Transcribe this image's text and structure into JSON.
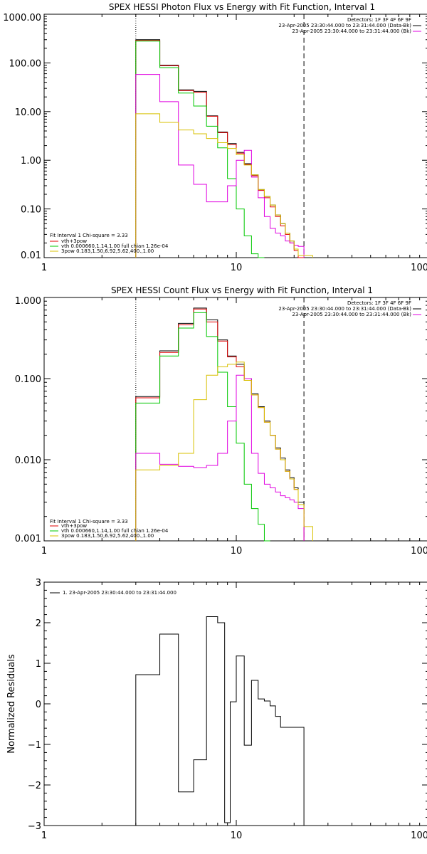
{
  "chart_data": [
    {
      "type": "line",
      "title": "SPEX HESSI Photon Flux vs Energy with Fit Function, Interval 1",
      "xlabel": "",
      "ylabel": "",
      "xscale": "log",
      "yscale": "log",
      "xlim": [
        1,
        100
      ],
      "ylim": [
        0.01,
        1000
      ],
      "xtick_values": [
        1,
        10,
        100
      ],
      "xtick_labels": [
        "1",
        "10",
        "100"
      ],
      "ytick_values": [
        0.01,
        0.1,
        1,
        10,
        100,
        1000
      ],
      "ytick_labels": [
        "0.01",
        "0.10",
        "1.00",
        "10.00",
        "100.00",
        "1000.00"
      ],
      "annotations": {
        "detectors": "Detectors: 1F 3F 4F 6F 9F",
        "interval_lines": [
          {
            "text": "23-Apr-2005 23:30:44.000 to 23:31:44.000 (Data-Bk)",
            "color": "#000000"
          },
          {
            "text": "23-Apr-2005 23:30:44.000 to 23:31:44.000 (Bk)",
            "color": "#e000e0"
          }
        ],
        "fit_info": "Fit Interval 1   Chi-square = 3.33",
        "fit_legend": [
          {
            "text": "vth+3pow",
            "color": "#e00000"
          },
          {
            "text": "vth 0.000660,1.14,1.00  full chian 1.26e-04",
            "color": "#00c800"
          },
          {
            "text": "3pow 0.183,1.50,6.92,5.62,400.,1.00",
            "color": "#d8c000"
          }
        ]
      },
      "vlines": [
        {
          "x": 3.0,
          "style": "dotted"
        },
        {
          "x": 22.5,
          "style": "dashed"
        }
      ],
      "bin_edges": [
        3.0,
        4.0,
        5.0,
        6.0,
        7.0,
        8.0,
        9.0,
        10.0,
        11.0,
        12.0,
        13.0,
        14.0,
        15.0,
        16.0,
        17.0,
        18.0,
        19.0,
        20.0,
        21.0,
        22.5,
        25.0
      ],
      "series": [
        {
          "color": "#000000",
          "values": [
            300,
            90,
            28,
            26,
            8.2,
            3.8,
            2.2,
            1.45,
            0.85,
            0.5,
            0.25,
            0.18,
            0.12,
            0.075,
            0.05,
            0.032,
            0.022,
            0.015,
            0.01,
            null
          ]
        },
        {
          "color": "#e00000",
          "values": [
            290,
            88,
            27,
            25,
            8.0,
            3.7,
            2.1,
            1.4,
            0.82,
            0.48,
            0.24,
            0.17,
            0.11,
            0.07,
            0.045,
            0.03,
            0.02,
            0.014,
            0.009,
            null
          ]
        },
        {
          "color": "#00c800",
          "values": [
            280,
            80,
            24,
            13,
            5.0,
            1.8,
            0.42,
            0.1,
            0.028,
            0.012,
            0.005,
            null,
            null,
            null,
            null,
            null,
            null,
            null,
            null,
            null
          ]
        },
        {
          "color": "#e000e0",
          "values": [
            58,
            16,
            0.8,
            0.32,
            0.14,
            0.14,
            0.3,
            1.0,
            1.6,
            0.45,
            0.17,
            0.07,
            0.04,
            0.032,
            0.028,
            0.022,
            0.02,
            0.018,
            0.017,
            null
          ]
        },
        {
          "color": "#d8c000",
          "values": [
            9.0,
            6.0,
            4.2,
            3.5,
            2.8,
            2.3,
            1.75,
            1.3,
            0.8,
            0.5,
            0.25,
            0.18,
            0.12,
            0.075,
            0.05,
            0.032,
            0.022,
            0.015,
            0.011,
            0.011
          ]
        }
      ]
    },
    {
      "type": "line",
      "title": "SPEX HESSI Count Flux vs Energy with Fit Function, Interval 1",
      "xlabel": "",
      "ylabel": "",
      "xscale": "log",
      "yscale": "log",
      "xlim": [
        1,
        100
      ],
      "ylim": [
        0.001,
        1
      ],
      "xtick_values": [
        1,
        10,
        100
      ],
      "xtick_labels": [
        "1",
        "10",
        "100"
      ],
      "ytick_values": [
        0.001,
        0.01,
        0.1,
        1
      ],
      "ytick_labels": [
        "0.001",
        "0.010",
        "0.100",
        "1.000"
      ],
      "annotations": {
        "detectors": "Detectors: 1F 3F 4F 6F 9F",
        "interval_lines": [
          {
            "text": "23-Apr-2005 23:30:44.000 to 23:31:44.000 (Data-Bk)",
            "color": "#000000"
          },
          {
            "text": "23-Apr-2005 23:30:44.000 to 23:31:44.000 (Bk)",
            "color": "#e000e0"
          }
        ],
        "fit_info": "Fit Interval 1   Chi-square = 3.33",
        "fit_legend": [
          {
            "text": "vth+3pow",
            "color": "#e00000"
          },
          {
            "text": "vth 0.000660,1.14,1.00  full chian 1.26e-04",
            "color": "#00c800"
          },
          {
            "text": "3pow 0.183,1.50,6.92,5.62,400.,1.00",
            "color": "#d8c000"
          }
        ]
      },
      "vlines": [
        {
          "x": 3.0,
          "style": "dotted"
        },
        {
          "x": 22.5,
          "style": "dashed"
        }
      ],
      "bin_edges": [
        3.0,
        4.0,
        5.0,
        6.0,
        7.0,
        8.0,
        9.0,
        10.0,
        11.0,
        12.0,
        13.0,
        14.0,
        15.0,
        16.0,
        17.0,
        18.0,
        19.0,
        20.0,
        21.0,
        22.5,
        25.0
      ],
      "series": [
        {
          "color": "#000000",
          "values": [
            0.06,
            0.22,
            0.48,
            0.74,
            0.53,
            0.3,
            0.19,
            0.15,
            0.1,
            0.065,
            0.045,
            0.03,
            0.02,
            0.014,
            0.0105,
            0.0075,
            0.006,
            0.0045,
            0.003,
            null
          ]
        },
        {
          "color": "#e00000",
          "values": [
            0.058,
            0.21,
            0.46,
            0.72,
            0.5,
            0.29,
            0.185,
            0.14,
            0.095,
            0.063,
            0.044,
            0.029,
            0.02,
            0.0135,
            0.01,
            0.0072,
            0.0058,
            0.0043,
            0.0028,
            null
          ]
        },
        {
          "color": "#00c800",
          "values": [
            0.05,
            0.19,
            0.42,
            0.65,
            0.33,
            0.12,
            0.045,
            0.016,
            0.005,
            0.0025,
            0.0016,
            0.001,
            null,
            null,
            null,
            null,
            null,
            null,
            null,
            null
          ]
        },
        {
          "color": "#e000e0",
          "values": [
            0.012,
            0.0088,
            0.0083,
            0.008,
            0.0085,
            0.012,
            0.03,
            0.11,
            0.1,
            0.012,
            0.0068,
            0.005,
            0.0045,
            0.004,
            0.0036,
            0.0034,
            0.0032,
            0.003,
            0.0025,
            null
          ]
        },
        {
          "color": "#d8c000",
          "values": [
            0.0075,
            0.0085,
            0.012,
            0.055,
            0.11,
            0.14,
            0.15,
            0.16,
            0.095,
            0.063,
            0.044,
            0.029,
            0.02,
            0.0135,
            0.01,
            0.0072,
            0.0058,
            0.0043,
            0.0028,
            0.0015
          ]
        }
      ]
    },
    {
      "type": "line",
      "title": "",
      "xlabel": "",
      "ylabel": "Normalized Residuals",
      "xscale": "log",
      "yscale": "linear",
      "xlim": [
        1,
        100
      ],
      "ylim": [
        -3,
        3
      ],
      "xtick_values": [
        1,
        10,
        100
      ],
      "xtick_labels": [
        "1",
        "10",
        "100"
      ],
      "ytick_values": [
        -3,
        -2,
        -1,
        0,
        1,
        2,
        3
      ],
      "ytick_labels": [
        "−3",
        "−2",
        "−1",
        "0",
        "1",
        "2",
        "3"
      ],
      "annotations": {
        "legend": [
          {
            "text": "1. 23-Apr-2005 23:30:44.000 to 23:31:44.000",
            "color": "#000000"
          }
        ]
      },
      "bin_edges": [
        3.0,
        4.0,
        5.0,
        6.0,
        7.0,
        8.0,
        9.0,
        10.0,
        11.0,
        12.0,
        13.0,
        14.0,
        15.0,
        16.0,
        17.0,
        18.0,
        19.0,
        20.0,
        21.0,
        22.5
      ],
      "series": [
        {
          "color": "#000000",
          "values": [
            0.72,
            1.72,
            -2.17,
            -1.38,
            2.15,
            2.0,
            -2.93,
            0.05,
            1.18,
            -1.02,
            0.58,
            0.12,
            0.07,
            -0.05,
            -0.31,
            -0.58
          ]
        }
      ],
      "residual_bin_edges": [
        3.0,
        4.0,
        5.0,
        6.0,
        7.0,
        8.0,
        8.7,
        9.3,
        10.0,
        11.0,
        12.0,
        13.0,
        14.0,
        15.0,
        16.0,
        17.0,
        22.5
      ]
    }
  ]
}
